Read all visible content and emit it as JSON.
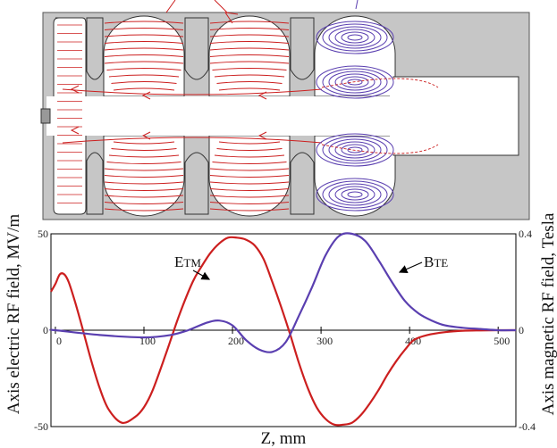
{
  "colors": {
    "cavity_fill": "#c6c6c6",
    "cavity_edge": "#333333",
    "tm_color": "#cc1f1f",
    "te_color": "#5a3fb0",
    "axis_color": "#000000"
  },
  "chart_data": {
    "type": "line",
    "xlabel": "Z, mm",
    "ylabel_left": "Axis electric RF field, MV/m",
    "ylabel_right": "Axis magnetic RF field, Tesla",
    "xlim": [
      -5,
      520
    ],
    "ylim_left": [
      -50,
      50
    ],
    "ylim_right": [
      -0.4,
      0.4
    ],
    "x_ticks": [
      0,
      100,
      200,
      300,
      400,
      500
    ],
    "y_ticks_left": [
      -50,
      0,
      50
    ],
    "y_ticks_right": [
      -0.4,
      0,
      0.4
    ],
    "series": [
      {
        "name": "ETM",
        "label_main": "E",
        "label_sub": "TM",
        "axis": "left",
        "x": [
          -5,
          0,
          5,
          10,
          15,
          22,
          30,
          40,
          50,
          60,
          75,
          90,
          100,
          110,
          125,
          140,
          155,
          165,
          175,
          185,
          195,
          205,
          215,
          225,
          235,
          245,
          255,
          265,
          275,
          285,
          295,
          305,
          315,
          325,
          335,
          345,
          355,
          365,
          375,
          385,
          395,
          405,
          420,
          440,
          460,
          480,
          500,
          520
        ],
        "y": [
          20,
          24,
          29,
          29,
          25,
          15,
          2,
          -15,
          -30,
          -41,
          -48,
          -45,
          -40,
          -31,
          -12,
          8,
          25,
          33,
          40,
          45,
          48,
          48,
          47,
          44,
          37,
          25,
          12,
          -2,
          -17,
          -30,
          -40,
          -46,
          -49,
          -49,
          -48,
          -44,
          -38,
          -31,
          -23,
          -16,
          -10,
          -5,
          -2.5,
          -1,
          -0.3,
          -0.1,
          0,
          0
        ]
      },
      {
        "name": "BTE",
        "label_main": "B",
        "label_sub": "TE",
        "axis": "right",
        "x": [
          -5,
          0,
          50,
          100,
          130,
          150,
          170,
          185,
          200,
          215,
          230,
          245,
          260,
          275,
          290,
          305,
          320,
          335,
          350,
          365,
          380,
          395,
          410,
          425,
          440,
          460,
          480,
          500,
          520
        ],
        "y": [
          0,
          0.0,
          -0.02,
          -0.03,
          -0.02,
          0.0,
          0.03,
          0.04,
          0.02,
          -0.04,
          -0.08,
          -0.09,
          -0.05,
          0.06,
          0.18,
          0.31,
          0.39,
          0.4,
          0.37,
          0.29,
          0.2,
          0.12,
          0.07,
          0.04,
          0.02,
          0.01,
          0.005,
          0.0,
          0.0
        ]
      }
    ]
  }
}
